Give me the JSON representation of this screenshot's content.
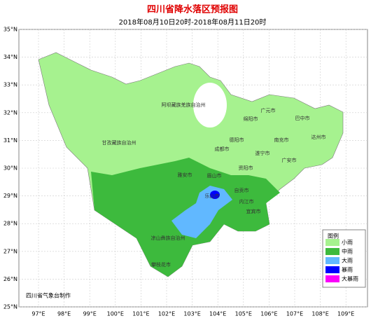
{
  "header": {
    "title": "四川省降水落区预报图",
    "subtitle": "2018年08月10日20时-2018年08月11日20时"
  },
  "lat_labels": [
    "35°N",
    "34°N",
    "33°N",
    "32°N",
    "31°N",
    "30°N",
    "29°N",
    "28°N",
    "27°N",
    "26°N",
    "25°N"
  ],
  "lon_labels": [
    "97°E",
    "98°E",
    "99°E",
    "100°E",
    "101°E",
    "102°E",
    "103°E",
    "104°E",
    "105°E",
    "106°E",
    "107°E",
    "108°E",
    "109°E"
  ],
  "cities": [
    "阿坝藏族羌族自治州",
    "广元市",
    "绵阳市",
    "巴中市",
    "德阳市",
    "南充市",
    "达州市",
    "甘孜藏族自治州",
    "成都市",
    "遂宁市",
    "广安市",
    "雅安市",
    "眉山市",
    "资阳市",
    "乐山市",
    "自贡市",
    "内江市",
    "宜宾市",
    "凉山彝族自治州",
    "攀枝花市"
  ],
  "legend": {
    "title": "图例",
    "items": [
      {
        "label": "小雨",
        "color": "#a6f28f"
      },
      {
        "label": "中雨",
        "color": "#3dba3d"
      },
      {
        "label": "大雨",
        "color": "#61b8ff"
      },
      {
        "label": "暴雨",
        "color": "#0000fe"
      },
      {
        "label": "大暴雨",
        "color": "#fa00fa"
      }
    ]
  },
  "credit": "四川省气象台制作"
}
